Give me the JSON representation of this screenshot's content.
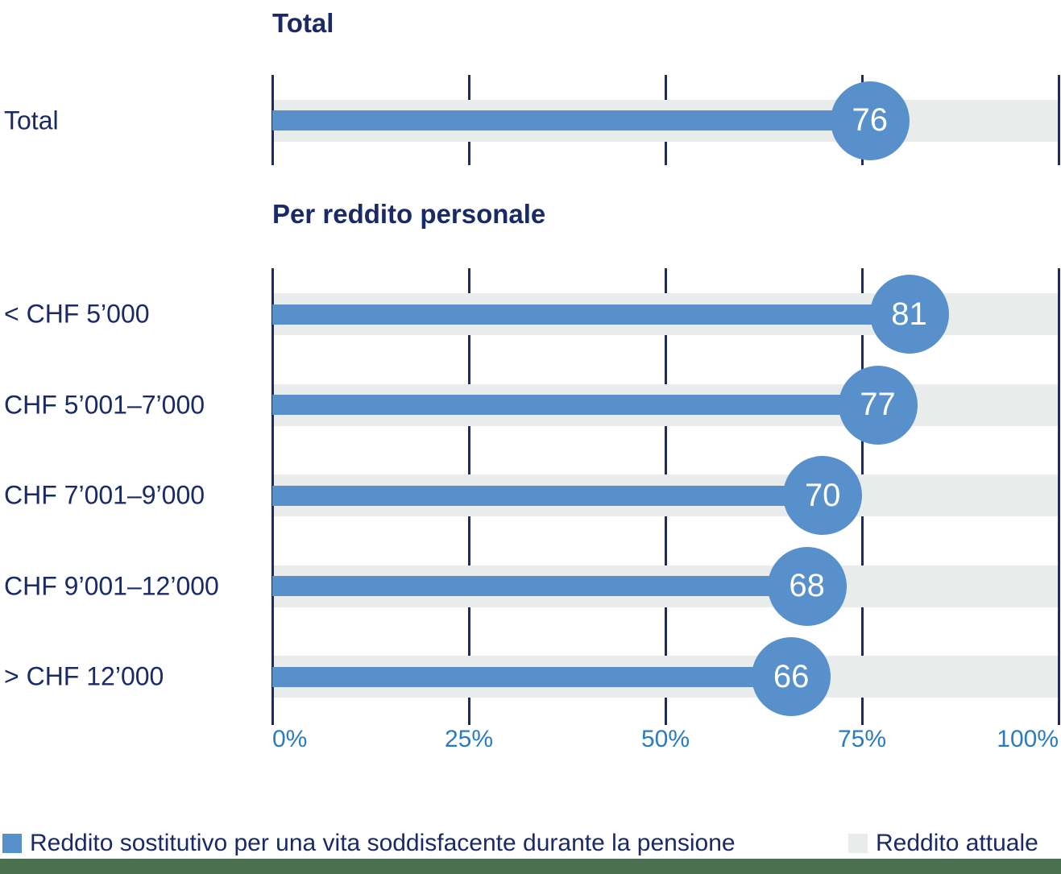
{
  "chart_data": [
    {
      "type": "bar",
      "orientation": "horizontal",
      "title": "Total",
      "categories": [
        "Total"
      ],
      "series": [
        {
          "name": "Reddito sostitutivo per una vita soddisfacente durante la pensione",
          "values": [
            76
          ],
          "color": "#5890CB"
        },
        {
          "name": "Reddito attuale",
          "values": [
            100
          ],
          "color": "#E8ECEA"
        }
      ],
      "value_labels": [
        "76"
      ],
      "xlim": [
        0,
        100
      ],
      "x_ticks": [
        0,
        25,
        50,
        75,
        100
      ],
      "x_tick_labels": [
        "0%",
        "25%",
        "50%",
        "75%",
        "100%"
      ],
      "grid": true,
      "legend_position": "bottom"
    },
    {
      "type": "bar",
      "orientation": "horizontal",
      "title": "Per reddito personale",
      "categories": [
        "< CHF 5’000",
        "CHF 5’001–7’000",
        "CHF 7’001–9’000",
        "CHF 9’001–12’000",
        "> CHF 12’000"
      ],
      "series": [
        {
          "name": "Reddito sostitutivo per una vita soddisfacente durante la pensione",
          "values": [
            81,
            77,
            70,
            68,
            66
          ],
          "color": "#5890CB"
        },
        {
          "name": "Reddito attuale",
          "values": [
            100,
            100,
            100,
            100,
            100
          ],
          "color": "#E8ECEA"
        }
      ],
      "value_labels": [
        "81",
        "77",
        "70",
        "68",
        "66"
      ],
      "xlim": [
        0,
        100
      ],
      "x_ticks": [
        0,
        25,
        50,
        75,
        100
      ],
      "x_tick_labels": [
        "0%",
        "25%",
        "50%",
        "75%",
        "100%"
      ],
      "grid": true,
      "legend_position": "bottom"
    }
  ],
  "legend": {
    "items": [
      {
        "label": "Reddito sostitutivo per una vita soddisfacente durante la pensione",
        "color": "#5890CB"
      },
      {
        "label": "Reddito attuale",
        "color": "#E8ECEA"
      }
    ]
  },
  "colors": {
    "bar_blue": "#5890CB",
    "track_gray": "#E8ECEA",
    "title_navy": "#1A2A66",
    "gridline_navy": "#1B2C64",
    "axis_label_blue": "#2B7BC1",
    "bubble_text": "#FFFFFF",
    "footer_green": "#4A7051",
    "background": "#FFFFFF"
  }
}
